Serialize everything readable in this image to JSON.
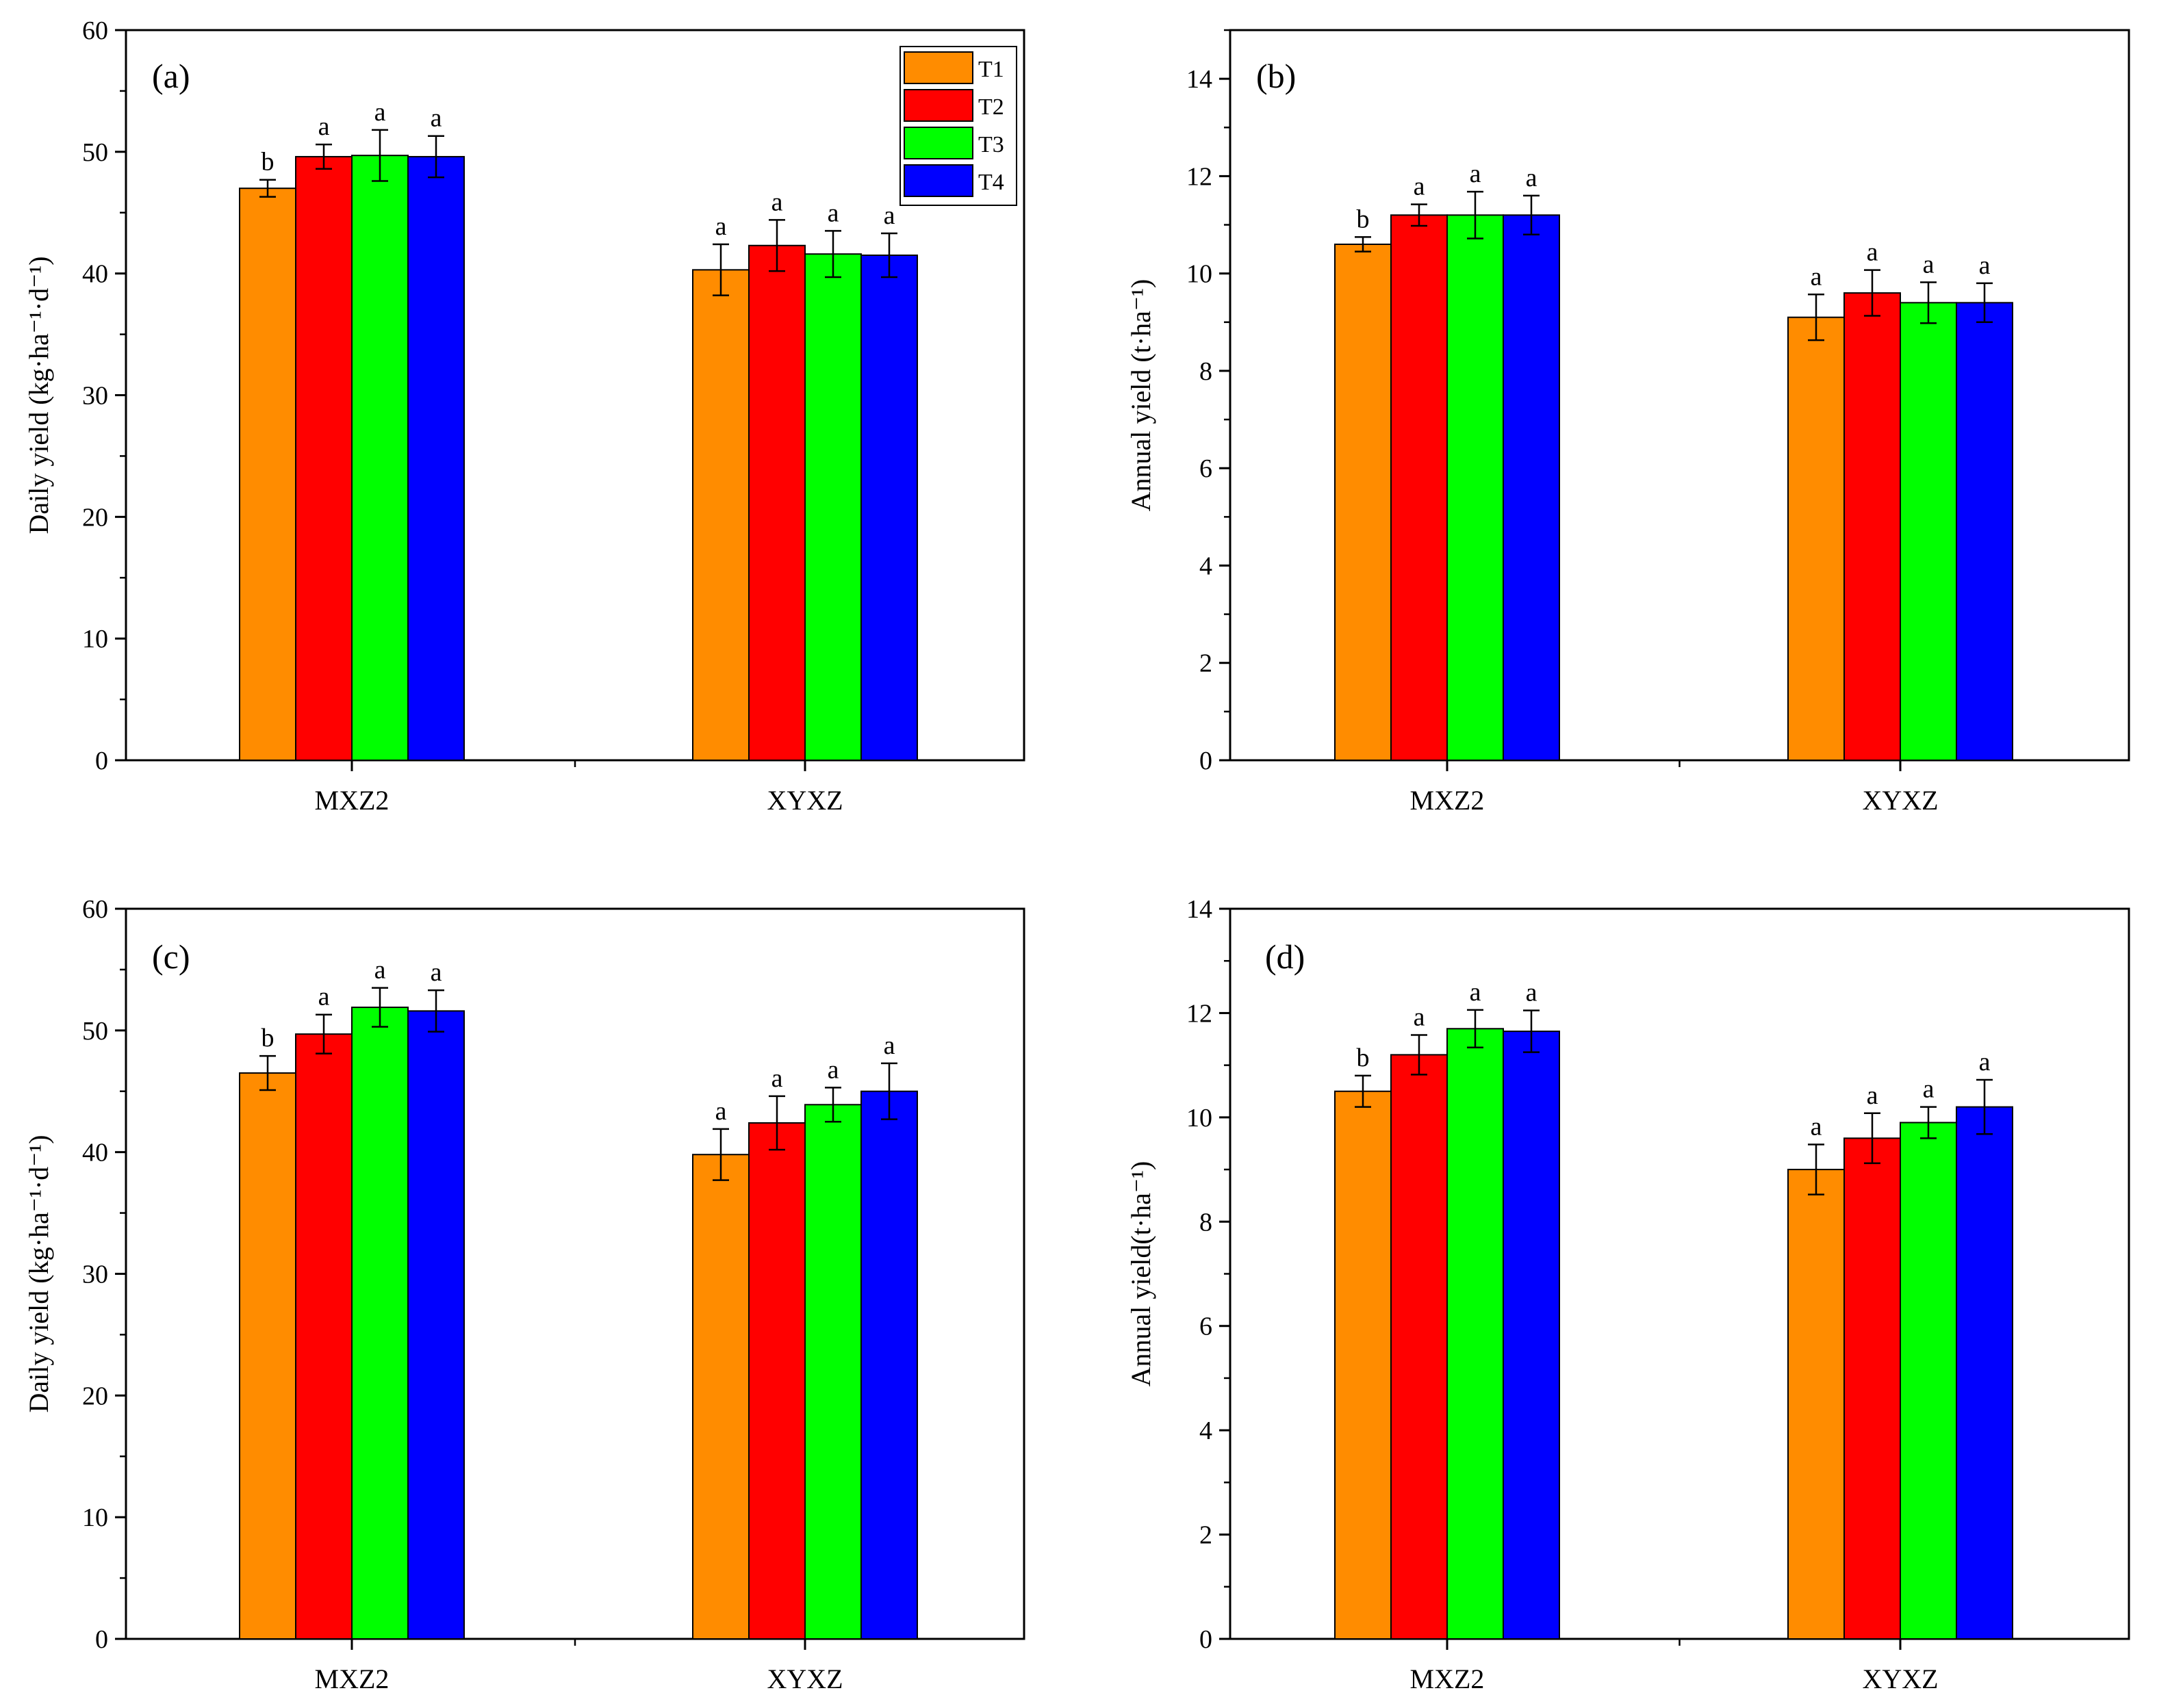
{
  "series_names": [
    "T1",
    "T2",
    "T3",
    "T4"
  ],
  "colors": {
    "T1": "#FF8C00",
    "T2": "#FF0000",
    "T3": "#00FF00",
    "T4": "#0000FF",
    "axis": "#000000"
  },
  "chart_data": [
    {
      "type": "bar",
      "panel_label": "(a)",
      "ylabel": "Daily yield (kg·ha⁻¹·d⁻¹)",
      "ylim": [
        0,
        60
      ],
      "yticks": [
        0,
        10,
        20,
        30,
        40,
        50,
        60
      ],
      "minor_step": 5,
      "categories": [
        "MXZ2",
        "XYXZ"
      ],
      "legend": true,
      "series": [
        {
          "name": "T1",
          "values": [
            47.0,
            40.3
          ],
          "errors": [
            0.7,
            2.1
          ],
          "sig": [
            "b",
            "a"
          ]
        },
        {
          "name": "T2",
          "values": [
            49.6,
            42.3
          ],
          "errors": [
            1.0,
            2.1
          ],
          "sig": [
            "a",
            "a"
          ]
        },
        {
          "name": "T3",
          "values": [
            49.7,
            41.6
          ],
          "errors": [
            2.1,
            1.9
          ],
          "sig": [
            "a",
            "a"
          ]
        },
        {
          "name": "T4",
          "values": [
            49.6,
            41.5
          ],
          "errors": [
            1.7,
            1.8
          ],
          "sig": [
            "a",
            "a"
          ]
        }
      ]
    },
    {
      "type": "bar",
      "panel_label": "(b)",
      "ylabel": "Annual yield (t·ha⁻¹)",
      "ylim": [
        0,
        15
      ],
      "yticks": [
        0,
        2,
        4,
        6,
        8,
        10,
        12,
        14
      ],
      "minor_step": 1,
      "categories": [
        "MXZ2",
        "XYXZ"
      ],
      "legend": false,
      "series": [
        {
          "name": "T1",
          "values": [
            10.6,
            9.1
          ],
          "errors": [
            0.15,
            0.47
          ],
          "sig": [
            "b",
            "a"
          ]
        },
        {
          "name": "T2",
          "values": [
            11.2,
            9.6
          ],
          "errors": [
            0.22,
            0.47
          ],
          "sig": [
            "a",
            "a"
          ]
        },
        {
          "name": "T3",
          "values": [
            11.2,
            9.4
          ],
          "errors": [
            0.48,
            0.42
          ],
          "sig": [
            "a",
            "a"
          ]
        },
        {
          "name": "T4",
          "values": [
            11.2,
            9.4
          ],
          "errors": [
            0.4,
            0.4
          ],
          "sig": [
            "a",
            "a"
          ]
        }
      ]
    },
    {
      "type": "bar",
      "panel_label": "(c)",
      "ylabel": "Daily yield (kg·ha⁻¹·d⁻¹)",
      "ylim": [
        0,
        60
      ],
      "yticks": [
        0,
        10,
        20,
        30,
        40,
        50,
        60
      ],
      "minor_step": 5,
      "categories": [
        "MXZ2",
        "XYXZ"
      ],
      "legend": false,
      "series": [
        {
          "name": "T1",
          "values": [
            46.5,
            39.8
          ],
          "errors": [
            1.4,
            2.1
          ],
          "sig": [
            "b",
            "a"
          ]
        },
        {
          "name": "T2",
          "values": [
            49.7,
            42.4
          ],
          "errors": [
            1.6,
            2.2
          ],
          "sig": [
            "a",
            "a"
          ]
        },
        {
          "name": "T3",
          "values": [
            51.9,
            43.9
          ],
          "errors": [
            1.6,
            1.4
          ],
          "sig": [
            "a",
            "a"
          ]
        },
        {
          "name": "T4",
          "values": [
            51.6,
            45.0
          ],
          "errors": [
            1.7,
            2.3
          ],
          "sig": [
            "a",
            "a"
          ]
        }
      ]
    },
    {
      "type": "bar",
      "panel_label": "(d)",
      "ylabel": "Annual yield(t·ha⁻¹)",
      "ylim": [
        0,
        14
      ],
      "yticks": [
        0,
        2,
        4,
        6,
        8,
        10,
        12,
        14
      ],
      "minor_step": 1,
      "categories": [
        "MXZ2",
        "XYXZ"
      ],
      "legend": false,
      "series": [
        {
          "name": "T1",
          "values": [
            10.5,
            9.0
          ],
          "errors": [
            0.3,
            0.48
          ],
          "sig": [
            "b",
            "a"
          ]
        },
        {
          "name": "T2",
          "values": [
            11.2,
            9.6
          ],
          "errors": [
            0.38,
            0.48
          ],
          "sig": [
            "a",
            "a"
          ]
        },
        {
          "name": "T3",
          "values": [
            11.7,
            9.9
          ],
          "errors": [
            0.36,
            0.3
          ],
          "sig": [
            "a",
            "a"
          ]
        },
        {
          "name": "T4",
          "values": [
            11.65,
            10.2
          ],
          "errors": [
            0.4,
            0.52
          ],
          "sig": [
            "a",
            "a"
          ]
        }
      ]
    }
  ]
}
